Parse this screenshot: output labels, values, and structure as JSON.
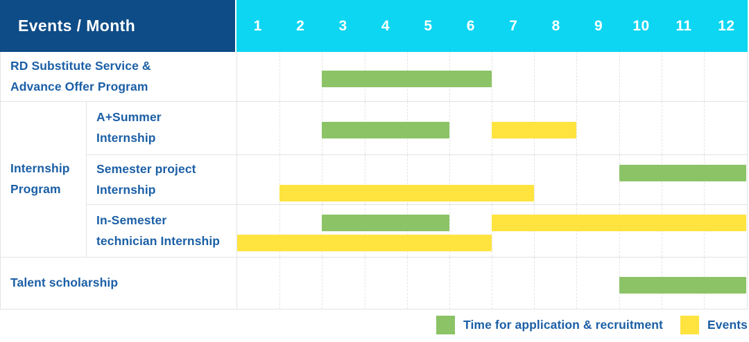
{
  "colors": {
    "header_navy": "#0e4c87",
    "header_cyan": "#0cd6f2",
    "bar_green": "#8bc366",
    "bar_yellow": "#ffe33e",
    "label_blue": "#1b5fa6",
    "grid_line": "#e3e3e3"
  },
  "table": {
    "header_label": "Events / Month",
    "months": [
      "1",
      "2",
      "3",
      "4",
      "5",
      "6",
      "7",
      "8",
      "9",
      "10",
      "11",
      "12"
    ],
    "sections": [
      {
        "label": "RD Substitute Service &\nAdvance Offer Program",
        "rows": [
          {
            "label": "",
            "bars": [
              {
                "type": "application",
                "start": 3,
                "end": 6,
                "lane": "mid"
              }
            ]
          }
        ]
      },
      {
        "label": "Internship\nProgram",
        "rows": [
          {
            "label": "A+Summer\nInternship",
            "bars": [
              {
                "type": "application",
                "start": 3,
                "end": 5,
                "lane": "mid"
              },
              {
                "type": "event",
                "start": 7,
                "end": 8,
                "lane": "mid"
              }
            ]
          },
          {
            "label": "Semester project\nInternship",
            "bars": [
              {
                "type": "application",
                "start": 10,
                "end": 12,
                "lane": "top"
              },
              {
                "type": "event",
                "start": 2,
                "end": 7,
                "lane": "bottom"
              }
            ]
          },
          {
            "label": "In-Semester\ntechnician Internship",
            "bars": [
              {
                "type": "application",
                "start": 3,
                "end": 5,
                "lane": "top"
              },
              {
                "type": "event",
                "start": 7,
                "end": 12,
                "lane": "top"
              },
              {
                "type": "event",
                "start": 1,
                "end": 6,
                "lane": "bottom"
              }
            ]
          }
        ]
      },
      {
        "label": "Talent scholarship",
        "rows": [
          {
            "label": "",
            "bars": [
              {
                "type": "application",
                "start": 10,
                "end": 12,
                "lane": "mid"
              }
            ]
          }
        ]
      }
    ]
  },
  "legend": {
    "items": [
      {
        "type": "application",
        "label": "Time for application & recruitment"
      },
      {
        "type": "event",
        "label": "Events"
      }
    ]
  },
  "chart_data": {
    "type": "gantt",
    "title": "Events / Month",
    "x_axis": {
      "label": "Month",
      "ticks": [
        1,
        2,
        3,
        4,
        5,
        6,
        7,
        8,
        9,
        10,
        11,
        12
      ],
      "range": [
        1,
        12
      ]
    },
    "legend": [
      {
        "name": "Time for application & recruitment",
        "color": "#8bc366"
      },
      {
        "name": "Events",
        "color": "#ffe33e"
      }
    ],
    "rows": [
      {
        "event": "RD Substitute Service & Advance Offer Program",
        "group": "",
        "spans": [
          {
            "series": "Time for application & recruitment",
            "start_month": 3,
            "end_month": 6
          }
        ]
      },
      {
        "event": "A+Summer Internship",
        "group": "Internship Program",
        "spans": [
          {
            "series": "Time for application & recruitment",
            "start_month": 3,
            "end_month": 5
          },
          {
            "series": "Events",
            "start_month": 7,
            "end_month": 8
          }
        ]
      },
      {
        "event": "Semester project Internship",
        "group": "Internship Program",
        "spans": [
          {
            "series": "Time for application & recruitment",
            "start_month": 10,
            "end_month": 12
          },
          {
            "series": "Events",
            "start_month": 2,
            "end_month": 7
          }
        ]
      },
      {
        "event": "In-Semester technician Internship",
        "group": "Internship Program",
        "spans": [
          {
            "series": "Time for application & recruitment",
            "start_month": 3,
            "end_month": 5
          },
          {
            "series": "Events",
            "start_month": 7,
            "end_month": 12
          },
          {
            "series": "Events",
            "start_month": 1,
            "end_month": 6
          }
        ]
      },
      {
        "event": "Talent scholarship",
        "group": "",
        "spans": [
          {
            "series": "Time for application & recruitment",
            "start_month": 10,
            "end_month": 12
          }
        ]
      }
    ],
    "layout": {
      "grid": "dashed vertical month lines",
      "legend_position": "bottom-right"
    }
  }
}
